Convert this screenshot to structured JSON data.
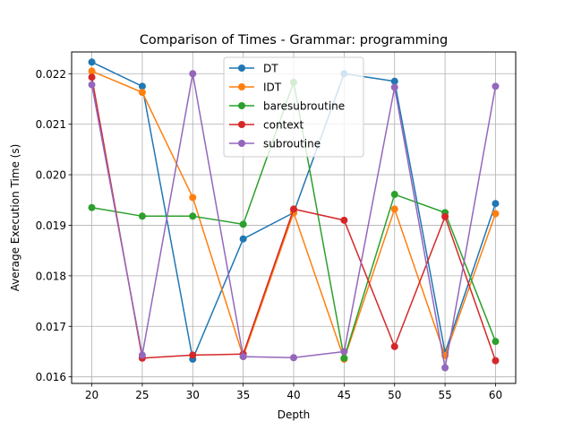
{
  "chart_data": {
    "type": "line",
    "title": "Comparison of Times - Grammar: programming",
    "xlabel": "Depth",
    "ylabel": "Average Execution Time (s)",
    "x": [
      20,
      25,
      30,
      35,
      40,
      45,
      50,
      55,
      60
    ],
    "xlim": [
      18,
      62
    ],
    "ylim": [
      0.01587,
      0.02243
    ],
    "xticks": [
      20,
      25,
      30,
      35,
      40,
      45,
      50,
      55,
      60
    ],
    "yticks": [
      0.016,
      0.017,
      0.018,
      0.019,
      0.02,
      0.021,
      0.022
    ],
    "ytick_labels": [
      "0.016",
      "0.017",
      "0.018",
      "0.019",
      "0.020",
      "0.021",
      "0.022"
    ],
    "grid": true,
    "legend_position": "upper-center",
    "series": [
      {
        "name": "DT",
        "color": "#1f77b4",
        "values": [
          0.02223,
          0.02175,
          0.01635,
          0.01873,
          0.01925,
          0.022,
          0.02185,
          0.01648,
          0.01943
        ]
      },
      {
        "name": "IDT",
        "color": "#ff7f0e",
        "values": [
          0.02205,
          0.02163,
          0.01955,
          0.0164,
          0.01925,
          0.01635,
          0.01932,
          0.01642,
          0.01923
        ]
      },
      {
        "name": "baresubroutine",
        "color": "#2ca02c",
        "values": [
          0.01935,
          0.01918,
          0.01918,
          0.01902,
          0.02183,
          0.01637,
          0.01961,
          0.01925,
          0.0167
        ]
      },
      {
        "name": "context",
        "color": "#d62728",
        "values": [
          0.02193,
          0.01637,
          0.01643,
          0.01645,
          0.01932,
          0.0191,
          0.0166,
          0.01917,
          0.01632
        ]
      },
      {
        "name": "subroutine",
        "color": "#9467bd",
        "values": [
          0.02178,
          0.01643,
          0.022,
          0.0164,
          0.01638,
          0.0165,
          0.02173,
          0.01618,
          0.02175
        ]
      }
    ]
  }
}
